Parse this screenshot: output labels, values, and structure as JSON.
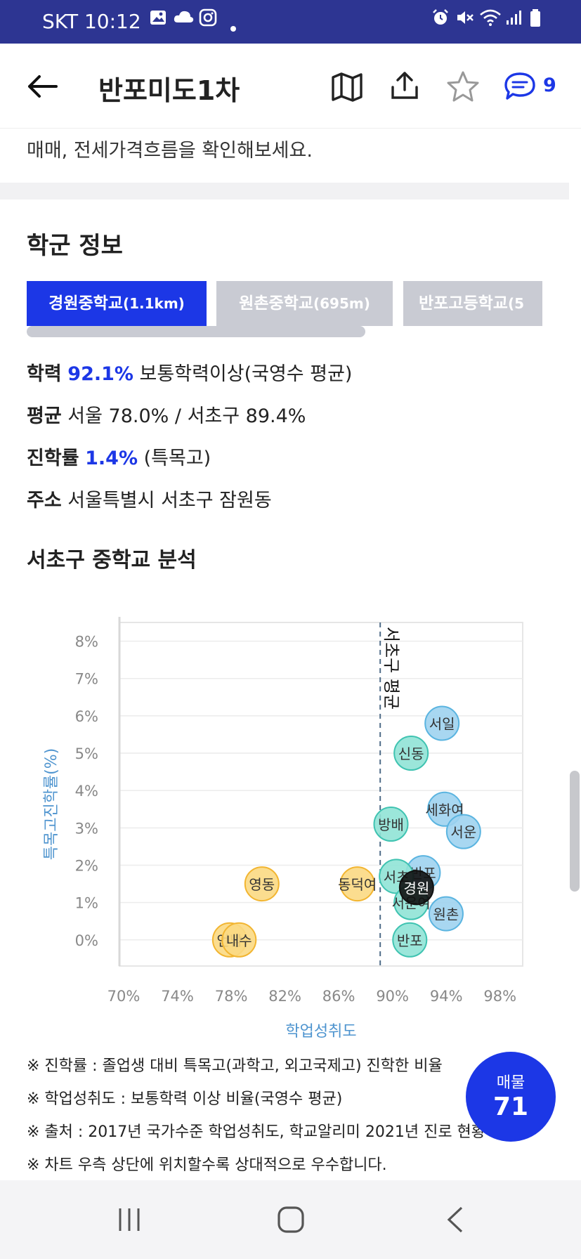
{
  "status": {
    "carrier": "SKT",
    "time": "10:12"
  },
  "header": {
    "title": "반포미도1차",
    "comment_count": "9"
  },
  "intro_text": "매매, 전세가격흐름을 확인해보세요.",
  "section_title": "학군 정보",
  "tabs": [
    {
      "label": "경원중학교",
      "sub": "(1.1km)",
      "active": true
    },
    {
      "label": "원촌중학교",
      "sub": "(695m)",
      "active": false
    },
    {
      "label": "반포고등학교",
      "sub": "(5",
      "active": false
    }
  ],
  "info": {
    "achievement": {
      "label": "학력",
      "value": "92.1%",
      "desc": "보통학력이상(국영수 평균)"
    },
    "average": {
      "label": "평균",
      "value": "서울 78.0% / 서초구 89.4%"
    },
    "advancement": {
      "label": "진학률",
      "value": "1.4%",
      "desc": "(특목고)"
    },
    "address": {
      "label": "주소",
      "value": "서울특별시 서초구 잠원동"
    }
  },
  "chart_section_title": "서초구 중학교 분석",
  "chart_data": {
    "type": "scatter",
    "xlabel": "학업성취도",
    "ylabel": "특목고진학률(%)",
    "xlim": [
      70,
      100
    ],
    "ylim": [
      -0.7,
      8.5
    ],
    "x_ticks": [
      "70%",
      "74%",
      "78%",
      "82%",
      "86%",
      "90%",
      "94%",
      "98%"
    ],
    "y_ticks": [
      "0%",
      "1%",
      "2%",
      "3%",
      "4%",
      "5%",
      "6%",
      "7%",
      "8%"
    ],
    "average_line": {
      "x": 89.4,
      "label": "서초구 평균"
    },
    "series": [
      {
        "color": "#9fd3ef",
        "stroke": "#5ab4e0",
        "points": [
          {
            "label": "서일",
            "x": 94.0,
            "y": 5.8
          },
          {
            "label": "세화여",
            "x": 94.2,
            "y": 3.5
          },
          {
            "label": "서운",
            "x": 95.6,
            "y": 2.9
          },
          {
            "label": "원촌",
            "x": 94.3,
            "y": 0.7
          },
          {
            "label": "반포",
            "x": 92.6,
            "y": 1.8
          }
        ]
      },
      {
        "color": "#90e3d6",
        "stroke": "#3fc3b1",
        "points": [
          {
            "label": "신동",
            "x": 91.7,
            "y": 5.0
          },
          {
            "label": "방배",
            "x": 90.2,
            "y": 3.1
          },
          {
            "label": "서초",
            "x": 90.6,
            "y": 1.7
          },
          {
            "label": "서운여",
            "x": 91.7,
            "y": 1.0
          },
          {
            "label": "반포",
            "x": 91.6,
            "y": -0.0
          }
        ]
      },
      {
        "color": "#fbd983",
        "stroke": "#f2b531",
        "points": [
          {
            "label": "영동",
            "x": 80.6,
            "y": 1.5
          },
          {
            "label": "동덕여",
            "x": 87.7,
            "y": 1.5
          },
          {
            "label": "언남",
            "x": 78.2,
            "y": 0.0
          },
          {
            "label": "내수",
            "x": 78.9,
            "y": 0.0
          }
        ]
      },
      {
        "color": "#111111",
        "stroke": "#111111",
        "points": [
          {
            "label": "경원",
            "x": 92.1,
            "y": 1.4
          }
        ]
      }
    ]
  },
  "notes": [
    "※ 진학률 : 졸업생 대비 특목고(과학고, 외고국제고) 진학한 비율",
    "※ 학업성취도 : 보통학력 이상 비율(국영수 평균)",
    "※ 출처 : 2017년 국가수준 학업성취도, 학교알리미 2021년 진로 현황",
    "※ 차트 우측 상단에 위치할수록 상대적으로 우수합니다."
  ],
  "fab": {
    "label": "매물",
    "count": "71"
  }
}
